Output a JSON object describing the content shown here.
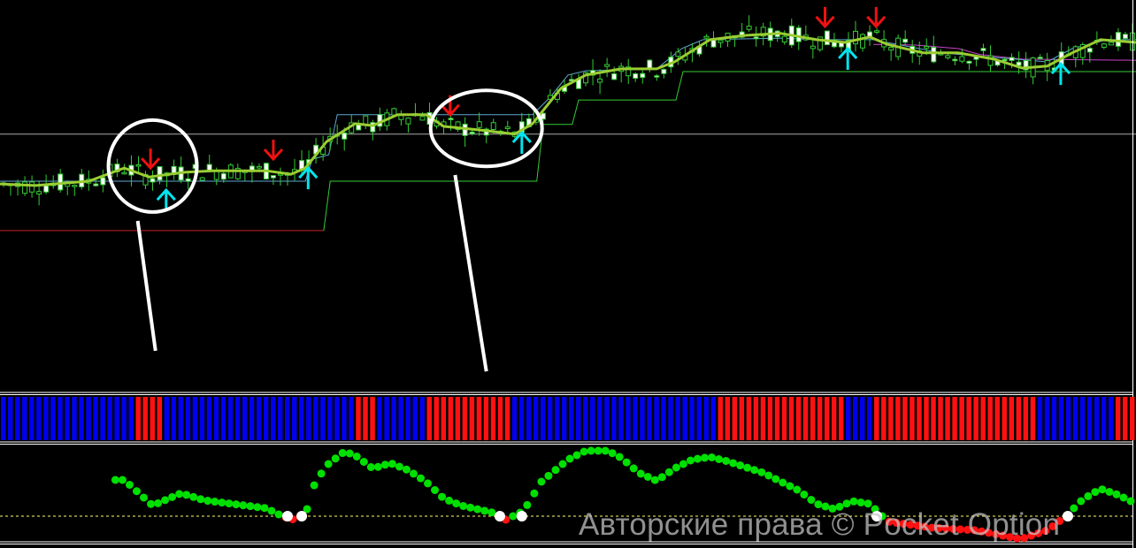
{
  "watermark": "Авторские права © Pocket Option",
  "colors": {
    "background": "#000000",
    "candle_bull": "#ffffff",
    "candle_outline": "#33cc33",
    "moving_average": "#9acd32",
    "trend_line_blue": "#5fa8d3",
    "support_green": "#33cc33",
    "support_red": "#cc2222",
    "resistance_magenta": "#cc44cc",
    "level_gray": "#aaaaaa",
    "sell_arrow": "#ee1111",
    "buy_arrow": "#00e5ee",
    "bar_blue": "#0000ee",
    "bar_red": "#ff1111",
    "osc_green": "#00e000",
    "osc_red": "#ff1111",
    "osc_cross": "#ffffff",
    "osc_zero": "#ffff66",
    "annotation": "#ffffff"
  },
  "chart_data": [
    {
      "type": "candlestick",
      "panel": "price",
      "bars": 160,
      "moving_average": [
        [
          0,
          52.7
        ],
        [
          5,
          52.3
        ],
        [
          12.5,
          53.4
        ],
        [
          17.5,
          56.8
        ],
        [
          21,
          54.5
        ],
        [
          26,
          55.7
        ],
        [
          30,
          56.1
        ],
        [
          37.5,
          56.1
        ],
        [
          41,
          55.2
        ],
        [
          43,
          56.8
        ],
        [
          46,
          63.6
        ],
        [
          50,
          68.2
        ],
        [
          52.5,
          67.7
        ],
        [
          56,
          70.5
        ],
        [
          60,
          70.5
        ],
        [
          62.5,
          67.5
        ],
        [
          67.5,
          66.6
        ],
        [
          72.5,
          65.5
        ],
        [
          75,
          68.2
        ],
        [
          79,
          77.3
        ],
        [
          82.5,
          80.7
        ],
        [
          87.5,
          82.3
        ],
        [
          92.5,
          82.3
        ],
        [
          95,
          84.1
        ],
        [
          100,
          89.8
        ],
        [
          105,
          90.9
        ],
        [
          110,
          91.4
        ],
        [
          115,
          89.8
        ],
        [
          119,
          89.1
        ],
        [
          122.5,
          90.5
        ],
        [
          125,
          88.6
        ],
        [
          130,
          86.4
        ],
        [
          135,
          86.4
        ],
        [
          140,
          84.8
        ],
        [
          144,
          82.5
        ],
        [
          147.5,
          83.0
        ],
        [
          151,
          86.4
        ],
        [
          155,
          89.8
        ],
        [
          160,
          89.1
        ]
      ],
      "blue_line": [
        [
          0,
          53.4
        ],
        [
          43,
          53.4
        ],
        [
          44,
          59.1
        ],
        [
          46.3,
          60.2
        ],
        [
          47.5,
          70.5
        ],
        [
          75,
          70.5
        ],
        [
          77.5,
          75
        ],
        [
          80,
          80.7
        ],
        [
          82.5,
          81.8
        ],
        [
          92.5,
          82.3
        ],
        [
          96,
          87.5
        ],
        [
          99,
          89.8
        ],
        [
          110,
          90.2
        ],
        [
          115,
          89.8
        ],
        [
          123,
          89.8
        ],
        [
          132.5,
          86.4
        ],
        [
          147.5,
          84.1
        ],
        [
          151,
          87.5
        ],
        [
          156,
          89.8
        ],
        [
          160,
          89.8
        ]
      ],
      "green_support": [
        [
          45.6,
          40.7
        ],
        [
          46.5,
          53.4
        ],
        [
          75.6,
          53.4
        ],
        [
          76.5,
          68.0
        ],
        [
          80.6,
          68.0
        ],
        [
          81.5,
          74.3
        ],
        [
          95.2,
          74.3
        ],
        [
          96.2,
          81.6
        ],
        [
          160,
          81.6
        ]
      ],
      "red_support": [
        [
          0,
          40.7
        ],
        [
          45.6,
          40.7
        ]
      ],
      "magenta_resistance": [
        [
          123,
          88.6
        ],
        [
          129,
          88.4
        ],
        [
          135,
          87.5
        ],
        [
          138,
          86.0
        ],
        [
          144,
          84.8
        ],
        [
          160,
          84.5
        ]
      ],
      "gray_level": 65.5,
      "sell_signals": [
        [
          21.2,
          56.8
        ],
        [
          38.5,
          59.1
        ],
        [
          63.4,
          70.5
        ],
        [
          116.2,
          93.2
        ],
        [
          123.4,
          93.2
        ]
      ],
      "buy_signals": [
        [
          23.4,
          51.1
        ],
        [
          43.4,
          56.8
        ],
        [
          73.5,
          65.9
        ],
        [
          119.4,
          87.5
        ],
        [
          149.4,
          83.6
        ]
      ],
      "annotations": {
        "circles": [
          [
            21.5,
            57.3
          ],
          [
            68.5,
            67.0
          ]
        ],
        "pointer_lines": [
          [
            [
              19.4,
              43.2
            ],
            [
              21.9,
              9.8
            ]
          ],
          [
            [
              64.1,
              55.0
            ],
            [
              68.5,
              4.5
            ]
          ]
        ]
      }
    },
    {
      "type": "bar",
      "panel": "trend_bars",
      "bars": 160,
      "red_ranges": [
        [
          19,
          23
        ],
        [
          50,
          53
        ],
        [
          60,
          72
        ],
        [
          101,
          119
        ],
        [
          123,
          146
        ],
        [
          157,
          160
        ]
      ]
    },
    {
      "type": "scatter",
      "panel": "oscillator",
      "zero_line": 0,
      "points": [
        [
          16.25,
          4.1
        ],
        [
          17.5,
          4.1
        ],
        [
          21.5,
          1.2
        ],
        [
          25.5,
          2.6
        ],
        [
          28.75,
          1.8
        ],
        [
          37.5,
          0.9
        ],
        [
          40,
          -0.1
        ],
        [
          41.5,
          -0.4
        ],
        [
          43.1,
          0.4
        ],
        [
          44.4,
          3.9
        ],
        [
          46.25,
          5.9
        ],
        [
          48.5,
          7.3
        ],
        [
          50,
          6.9
        ],
        [
          52.5,
          5.4
        ],
        [
          55,
          6.0
        ],
        [
          57.5,
          5.2
        ],
        [
          60,
          3.9
        ],
        [
          62.5,
          2.0
        ],
        [
          65,
          1.2
        ],
        [
          69.4,
          0.4
        ],
        [
          71.25,
          -0.4
        ],
        [
          73.75,
          0.6
        ],
        [
          76.25,
          3.9
        ],
        [
          80,
          6.4
        ],
        [
          82.5,
          7.4
        ],
        [
          85.6,
          7.4
        ],
        [
          87.5,
          6.6
        ],
        [
          90,
          4.9
        ],
        [
          92.5,
          4.0
        ],
        [
          95,
          5.4
        ],
        [
          97.5,
          6.4
        ],
        [
          100,
          6.7
        ],
        [
          102.5,
          6.2
        ],
        [
          107.5,
          4.9
        ],
        [
          112.5,
          2.9
        ],
        [
          115,
          1.4
        ],
        [
          117.5,
          0.8
        ],
        [
          120,
          1.7
        ],
        [
          122.5,
          1.4
        ],
        [
          123.75,
          0.4
        ],
        [
          125,
          -0.6
        ],
        [
          131.25,
          -1.3
        ],
        [
          137.5,
          -1.6
        ],
        [
          143.75,
          -2.6
        ],
        [
          147.5,
          -1.6
        ],
        [
          150,
          -0.1
        ],
        [
          152.5,
          1.9
        ],
        [
          155,
          3.1
        ],
        [
          157.5,
          2.4
        ],
        [
          160,
          1.4
        ]
      ],
      "crossings": [
        40.5,
        42.5,
        70.4,
        73.5,
        123.5,
        150.4
      ]
    }
  ]
}
